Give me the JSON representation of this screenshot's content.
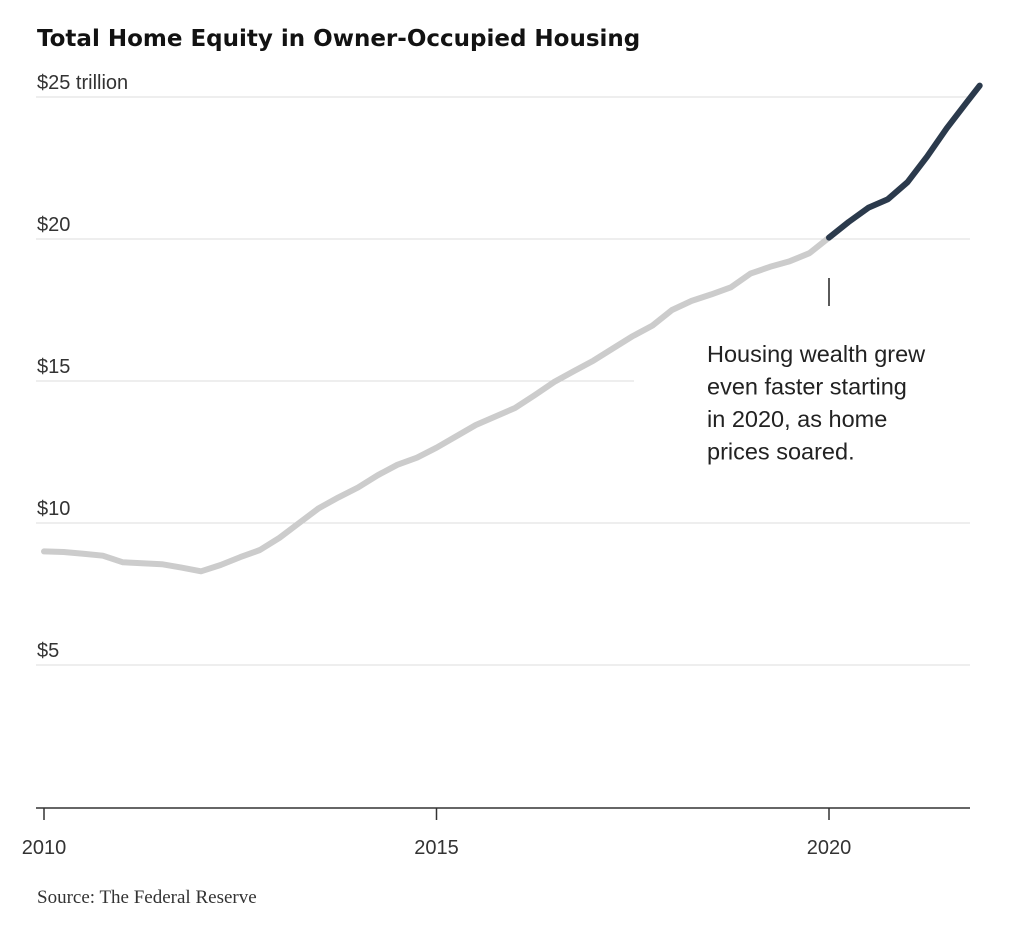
{
  "chart_data": {
    "type": "line",
    "title": "Total Home Equity in Owner-Occupied Housing",
    "ylim": [
      0,
      25
    ],
    "xlim": [
      2010,
      2022
    ],
    "y_ticks": [
      {
        "value": 25,
        "label": "$25 trillion"
      },
      {
        "value": 20,
        "label": "$20"
      },
      {
        "value": 15,
        "label": "$15"
      },
      {
        "value": 10,
        "label": "$10"
      },
      {
        "value": 5,
        "label": "$5"
      }
    ],
    "x_ticks": [
      {
        "value": 2010,
        "label": "2010"
      },
      {
        "value": 2015,
        "label": "2015"
      },
      {
        "value": 2020,
        "label": "2020"
      }
    ],
    "grid": true,
    "series": [
      {
        "color": "#cccccc",
        "x": [
          2010.0,
          2010.25,
          2010.5,
          2010.75,
          2011.0,
          2011.25,
          2011.5,
          2011.75,
          2012.0,
          2012.25,
          2012.5,
          2012.75,
          2013.0,
          2013.25,
          2013.5,
          2013.75,
          2014.0,
          2014.25,
          2014.5,
          2014.75,
          2015.0,
          2015.25,
          2015.5,
          2015.75,
          2016.0,
          2016.25,
          2016.5,
          2016.75,
          2017.0,
          2017.25,
          2017.5,
          2017.75,
          2018.0,
          2018.25,
          2018.5,
          2018.75,
          2019.0,
          2019.25,
          2019.5,
          2019.75,
          2020.0
        ],
        "values": [
          9.0,
          8.98,
          8.92,
          8.85,
          8.62,
          8.58,
          8.55,
          8.43,
          8.3,
          8.52,
          8.8,
          9.05,
          9.48,
          10.0,
          10.52,
          10.9,
          11.25,
          11.68,
          12.05,
          12.3,
          12.65,
          13.05,
          13.45,
          13.75,
          14.05,
          14.5,
          14.97,
          15.35,
          15.72,
          16.15,
          16.58,
          16.95,
          17.5,
          17.82,
          18.05,
          18.3,
          18.78,
          19.02,
          19.22,
          19.5,
          20.05
        ]
      },
      {
        "color": "#2b3a4c",
        "x": [
          2020.0,
          2020.25,
          2020.5,
          2020.75,
          2021.0,
          2021.25,
          2021.5,
          2021.75,
          2021.92
        ],
        "values": [
          20.05,
          20.6,
          21.1,
          21.4,
          22.0,
          22.9,
          23.9,
          24.8,
          25.4
        ]
      }
    ],
    "annotation": {
      "lines": [
        "Housing wealth grew",
        "even faster starting",
        "in 2020, as home",
        "prices soared."
      ],
      "x": 2020.0
    },
    "source": "Source: The Federal Reserve"
  }
}
